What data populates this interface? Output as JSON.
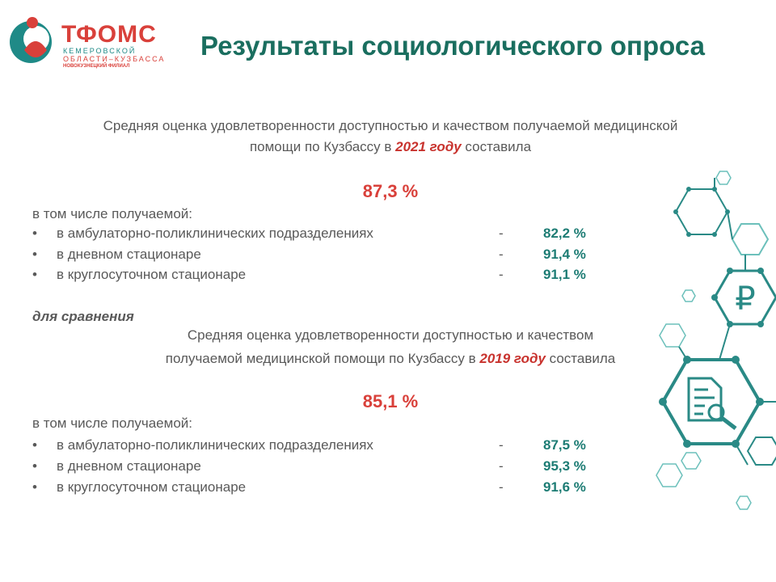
{
  "logo": {
    "name": "ТФОМС",
    "line1": "КЕМЕРОВСКОЙ",
    "line2": "ОБЛАСТИ–КУЗБАССА",
    "branch": "НОВОКУЗНЕЦКИЙ ФИЛИАЛ"
  },
  "header": {
    "title": "Результаты социологического опроса"
  },
  "section_2021": {
    "intro_line1": "Средняя оценка удовлетворенности  доступностью и качеством получаемой медицинской",
    "intro_line2_before": "помощи по Кузбассу в ",
    "year": "2021 году",
    "intro_line2_after": "составила",
    "total": "87,3 %",
    "subtitle": "в том числе получаемой:",
    "items": [
      {
        "label": "в амбулаторно-поликлинических  подразделениях",
        "dash": "-",
        "value": "82,2 %"
      },
      {
        "label": "в дневном стационаре",
        "dash": "-",
        "value": "91,4 %"
      },
      {
        "label": "в круглосуточном стационаре",
        "dash": "-",
        "value": "91,1 %"
      }
    ]
  },
  "comparison_label": "для сравнения",
  "section_2019": {
    "intro_line1": "Средняя оценка удовлетворенности  доступностью и качеством",
    "intro_line2_before": "получаемой медицинской  помощи по Кузбассу в",
    "year": "2019 году",
    "intro_line2_after": "составила",
    "total": "85,1 %",
    "subtitle": "в том числе получаемой:",
    "items": [
      {
        "label": "в амбулаторно-поликлинических  подразделениях",
        "dash": "-",
        "value": "87,5 %"
      },
      {
        "label": "в дневном стационаре",
        "dash": "-",
        "value": "95,3 %"
      },
      {
        "label": "в круглосуточном стационаре",
        "dash": "-",
        "value": "91,6 %"
      }
    ]
  }
}
